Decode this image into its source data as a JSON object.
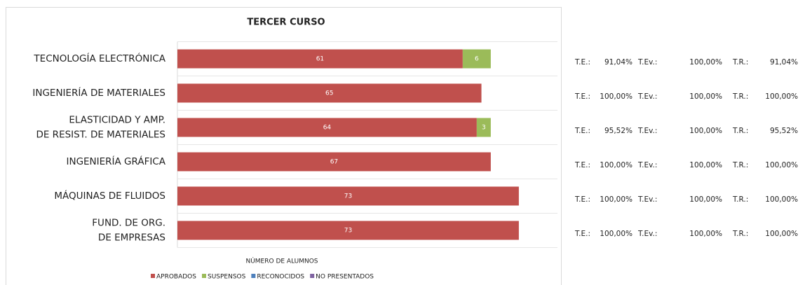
{
  "chart_data": {
    "type": "stacked-barh",
    "title": "TERCER CURSO",
    "xlabel": "NÚMERO DE ALUMNOS",
    "categories": [
      [
        "TECNOLOGÍA ELECTRÓNICA"
      ],
      [
        "INGENIERÍA DE MATERIALES"
      ],
      [
        "ELASTICIDAD Y AMP.",
        "DE RESIST. DE MATERIALES"
      ],
      [
        "INGENIERÍA GRÁFICA"
      ],
      [
        "MÁQUINAS DE FLUIDOS"
      ],
      [
        "FUND. DE ORG.",
        "DE EMPRESAS"
      ]
    ],
    "series": [
      {
        "name": "APROBADOS",
        "color": "#c0504d",
        "values": [
          61,
          65,
          64,
          67,
          73,
          73
        ]
      },
      {
        "name": "SUSPENSOS",
        "color": "#9bbb59",
        "values": [
          6,
          null,
          3,
          null,
          null,
          null
        ]
      },
      {
        "name": "RECONOCIDOS",
        "color": "#4f81bd",
        "values": [
          null,
          null,
          null,
          null,
          null,
          null
        ]
      },
      {
        "name": "NO PRESENTADOS",
        "color": "#8064a2",
        "values": [
          null,
          null,
          null,
          null,
          null,
          null
        ]
      }
    ],
    "legend": "bottom"
  },
  "rates": {
    "labels": [
      "T.E.:",
      "T.Ev.:",
      "T.R.:"
    ],
    "rows": [
      [
        "91,04%",
        "100,00%",
        "91,04%"
      ],
      [
        "100,00%",
        "100,00%",
        "100,00%"
      ],
      [
        "95,52%",
        "100,00%",
        "95,52%"
      ],
      [
        "100,00%",
        "100,00%",
        "100,00%"
      ],
      [
        "100,00%",
        "100,00%",
        "100,00%"
      ],
      [
        "100,00%",
        "100,00%",
        "100,00%"
      ]
    ]
  }
}
